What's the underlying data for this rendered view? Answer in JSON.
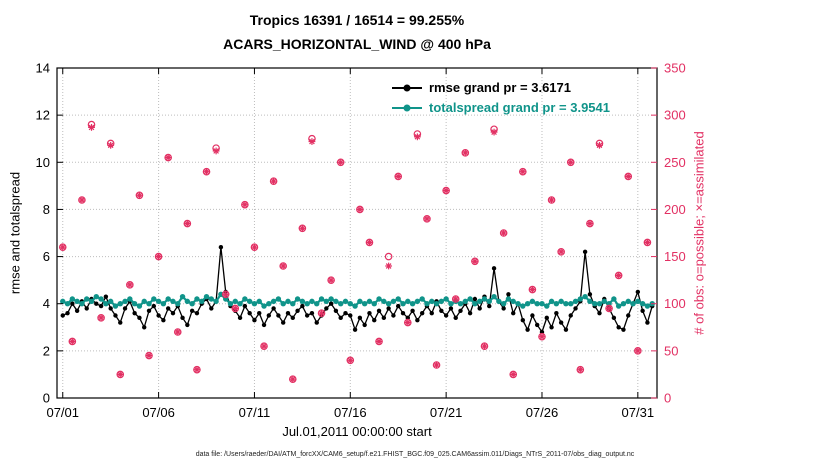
{
  "figure": {
    "caption": "data file: /Users/raeder/DAI/ATM_forcXX/CAM6_setup/f.e21.FHIST_BGC.f09_025.CAM6assim.011/Diags_NTrS_2011-07/obs_diag_output.nc"
  },
  "chart_data": {
    "type": "line",
    "title": "Tropics 16391 / 16514 = 99.255%",
    "subtitle": "ACARS_HORIZONTAL_WIND @ 400 hPa",
    "xlabel": "Jul.01,2011 00:00:00 start",
    "ylabel_left": "rmse and totalspread",
    "ylabel_right": "# of obs: o=possible; ×=assimilated",
    "ylim_left": [
      0,
      14
    ],
    "ylim_right": [
      0,
      350
    ],
    "xlim_days": [
      -0.3,
      31.0
    ],
    "grid": true,
    "xticks": {
      "positions": [
        0,
        5,
        10,
        15,
        20,
        25,
        30
      ],
      "labels": [
        "07/01",
        "07/06",
        "07/11",
        "07/16",
        "07/21",
        "07/26",
        "07/31"
      ]
    },
    "yticks_left": [
      "0",
      "2",
      "4",
      "6",
      "8",
      "10",
      "12",
      "14"
    ],
    "yticks_right": [
      "0",
      "50",
      "100",
      "150",
      "200",
      "250",
      "300",
      "350"
    ],
    "colors": {
      "rmse": "#000000",
      "totalspread": "#10948a",
      "obs": "#e23063",
      "grid": "#bdbdbd",
      "axis": "#000000"
    },
    "legend": {
      "position": "top-center-inside",
      "entries": [
        {
          "label": "rmse grand pr = 3.6171",
          "color": "#000000"
        },
        {
          "label": "totalspread grand pr = 3.9541",
          "color": "#10948a"
        }
      ]
    },
    "series": [
      {
        "name": "rmse",
        "color_key": "rmse",
        "x_start_days": 0,
        "x_step_days": 0.25,
        "values": [
          3.5,
          3.6,
          4.0,
          3.7,
          4.1,
          3.8,
          4.2,
          4.0,
          3.9,
          4.3,
          3.8,
          3.5,
          3.2,
          3.8,
          4.1,
          3.6,
          3.4,
          3.0,
          3.7,
          3.9,
          3.5,
          3.3,
          3.8,
          3.6,
          3.9,
          3.4,
          3.1,
          3.7,
          3.6,
          4.0,
          4.2,
          3.8,
          4.1,
          6.4,
          4.5,
          3.9,
          3.7,
          3.4,
          3.9,
          3.6,
          3.3,
          3.6,
          3.1,
          3.5,
          3.8,
          3.5,
          3.2,
          3.6,
          3.4,
          3.7,
          3.9,
          3.5,
          3.6,
          3.2,
          3.5,
          3.8,
          4.0,
          3.7,
          3.4,
          3.6,
          3.5,
          2.9,
          3.4,
          3.1,
          3.6,
          3.3,
          3.7,
          3.4,
          3.8,
          3.5,
          3.9,
          3.6,
          3.4,
          3.7,
          3.3,
          3.6,
          3.9,
          3.6,
          4.1,
          3.7,
          3.5,
          3.8,
          3.4,
          3.7,
          4.0,
          3.6,
          4.2,
          3.8,
          4.3,
          3.9,
          5.5,
          4.1,
          3.8,
          4.4,
          3.6,
          4.0,
          3.3,
          2.9,
          3.5,
          3.1,
          2.8,
          3.4,
          3.0,
          3.6,
          3.2,
          2.9,
          3.5,
          3.8,
          4.1,
          6.2,
          4.4,
          3.9,
          3.6,
          4.2,
          3.8,
          3.4,
          3.0,
          2.9,
          3.5,
          4.0,
          4.5,
          3.7,
          3.2,
          3.9
        ]
      },
      {
        "name": "totalspread",
        "color_key": "totalspread",
        "x_start_days": 0,
        "x_step_days": 0.25,
        "values": [
          4.1,
          4.0,
          4.2,
          4.1,
          4.0,
          4.2,
          4.1,
          4.3,
          4.2,
          4.0,
          4.1,
          3.9,
          4.0,
          4.1,
          4.2,
          4.0,
          3.9,
          4.1,
          4.0,
          4.2,
          4.1,
          4.0,
          4.2,
          4.1,
          4.0,
          4.3,
          4.1,
          4.0,
          4.2,
          4.1,
          4.3,
          4.2,
          4.1,
          4.4,
          4.2,
          4.0,
          4.1,
          4.0,
          4.2,
          4.1,
          4.0,
          4.1,
          3.9,
          4.0,
          4.1,
          4.2,
          4.0,
          4.1,
          4.0,
          4.2,
          4.1,
          4.0,
          4.1,
          4.0,
          4.2,
          4.1,
          4.2,
          4.1,
          4.0,
          4.1,
          4.0,
          3.9,
          4.1,
          4.0,
          4.1,
          4.0,
          4.2,
          4.1,
          4.0,
          4.1,
          4.2,
          4.0,
          4.1,
          4.0,
          4.1,
          4.2,
          4.0,
          4.1,
          4.0,
          4.1,
          4.2,
          4.0,
          4.1,
          4.0,
          4.1,
          4.2,
          4.0,
          4.1,
          4.2,
          4.1,
          4.3,
          4.1,
          4.0,
          4.2,
          4.1,
          4.0,
          3.9,
          4.0,
          4.1,
          4.0,
          4.0,
          3.9,
          4.1,
          4.0,
          4.1,
          4.0,
          4.0,
          4.1,
          4.2,
          4.3,
          4.1,
          4.0,
          4.0,
          4.1,
          4.0,
          4.2,
          3.9,
          4.0,
          4.1,
          4.0,
          4.1,
          4.0,
          3.9,
          4.0
        ]
      }
    ],
    "obs_series": {
      "x_start_days": 0,
      "x_step_days": 0.5,
      "possible": [
        160,
        60,
        210,
        290,
        85,
        270,
        25,
        120,
        215,
        45,
        150,
        255,
        70,
        185,
        30,
        240,
        265,
        110,
        95,
        205,
        160,
        55,
        230,
        140,
        20,
        180,
        275,
        90,
        125,
        250,
        40,
        200,
        165,
        60,
        150,
        235,
        80,
        280,
        190,
        35,
        220,
        105,
        260,
        145,
        55,
        285,
        175,
        25,
        240,
        115,
        65,
        210,
        155,
        250,
        30,
        185,
        270,
        95,
        130,
        235,
        50,
        165
      ],
      "assimilated": [
        160,
        60,
        210,
        287,
        85,
        268,
        25,
        120,
        215,
        45,
        150,
        255,
        70,
        185,
        30,
        240,
        262,
        110,
        95,
        205,
        160,
        55,
        230,
        140,
        20,
        180,
        272,
        90,
        125,
        250,
        40,
        200,
        165,
        60,
        140,
        235,
        80,
        277,
        190,
        35,
        220,
        105,
        260,
        145,
        55,
        282,
        175,
        25,
        240,
        115,
        65,
        210,
        155,
        250,
        30,
        185,
        268,
        95,
        130,
        235,
        50,
        165
      ]
    }
  }
}
